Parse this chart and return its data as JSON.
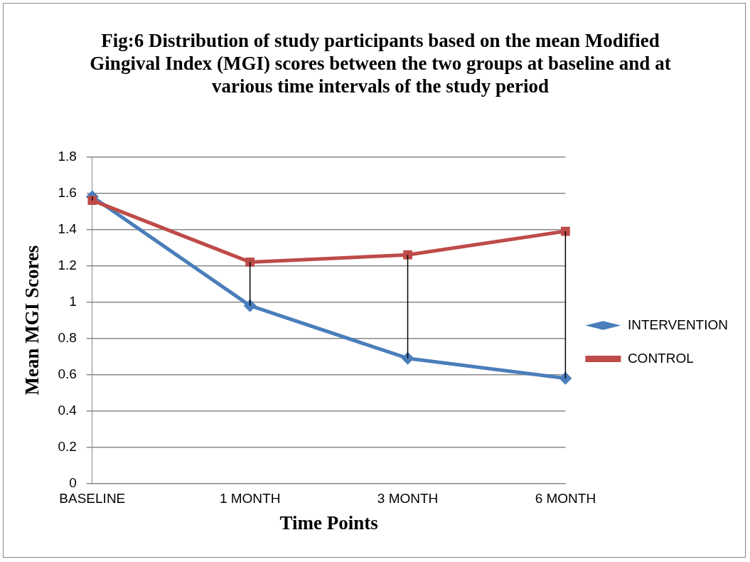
{
  "chart_data": {
    "type": "line",
    "title": "Fig:6 Distribution of study participants based on the mean Modified Gingival Index (MGI) scores between the two groups at baseline and at various time intervals of the study period",
    "xlabel": "Time Points",
    "ylabel": "Mean MGI Scores",
    "categories": [
      "BASELINE",
      "1 MONTH",
      "3 MONTH",
      "6 MONTH"
    ],
    "series": [
      {
        "name": "INTERVENTION",
        "color": "#4a7ebb",
        "marker": "diamond",
        "values": [
          1.58,
          0.98,
          0.69,
          0.58
        ],
        "errors": [
          [
            1.56,
            1.58
          ],
          [
            0.98,
            1.22
          ],
          [
            0.69,
            1.26
          ],
          [
            0.58,
            1.39
          ]
        ]
      },
      {
        "name": "CONTROL",
        "color": "#be4b48",
        "marker": "square",
        "values": [
          1.56,
          1.22,
          1.26,
          1.39
        ]
      }
    ],
    "ylim": [
      0,
      1.8
    ],
    "yticks": [
      0,
      0.2,
      0.4,
      0.6,
      0.8,
      1,
      1.2,
      1.4,
      1.6,
      1.8
    ],
    "grid": "y",
    "legend": "right",
    "line_style": "solid"
  }
}
